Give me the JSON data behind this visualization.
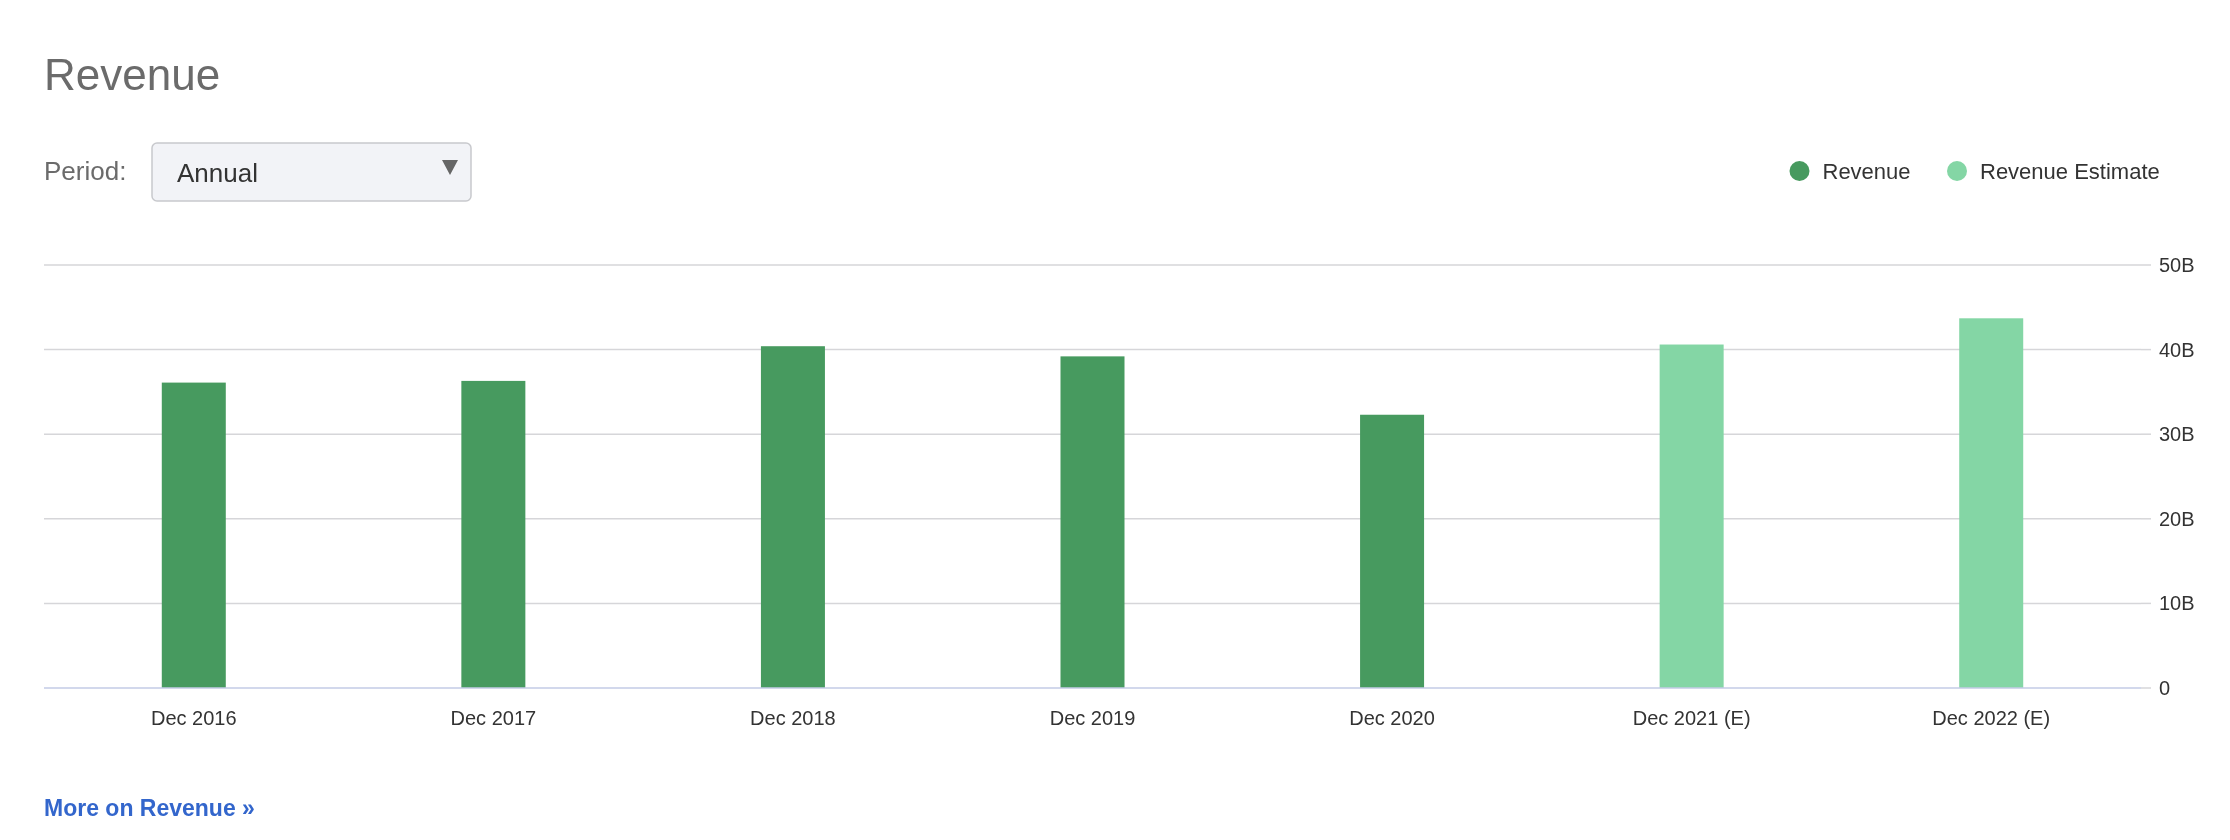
{
  "chart_data": {
    "type": "bar",
    "title": "Revenue",
    "categories": [
      "Dec 2016",
      "Dec 2017",
      "Dec 2018",
      "Dec 2019",
      "Dec 2020",
      "Dec 2021 (E)",
      "Dec 2022 (E)"
    ],
    "series": [
      {
        "name": "Revenue",
        "color": "#479a5f",
        "values": [
          36.1,
          36.3,
          40.4,
          39.2,
          32.3,
          null,
          null
        ]
      },
      {
        "name": "Revenue Estimate",
        "color": "#84d6a5",
        "values": [
          null,
          null,
          null,
          null,
          null,
          40.6,
          43.7
        ]
      }
    ],
    "ylim": [
      0,
      50
    ],
    "yticks": [
      {
        "value": 0,
        "label": "0"
      },
      {
        "value": 10,
        "label": "10B"
      },
      {
        "value": 20,
        "label": "20B"
      },
      {
        "value": 30,
        "label": "30B"
      },
      {
        "value": 40,
        "label": "40B"
      },
      {
        "value": 50,
        "label": "50B"
      }
    ],
    "grid": "y",
    "legend": "top right",
    "annotations": [
      "Period:",
      "Annual",
      "More on Revenue »"
    ]
  }
}
